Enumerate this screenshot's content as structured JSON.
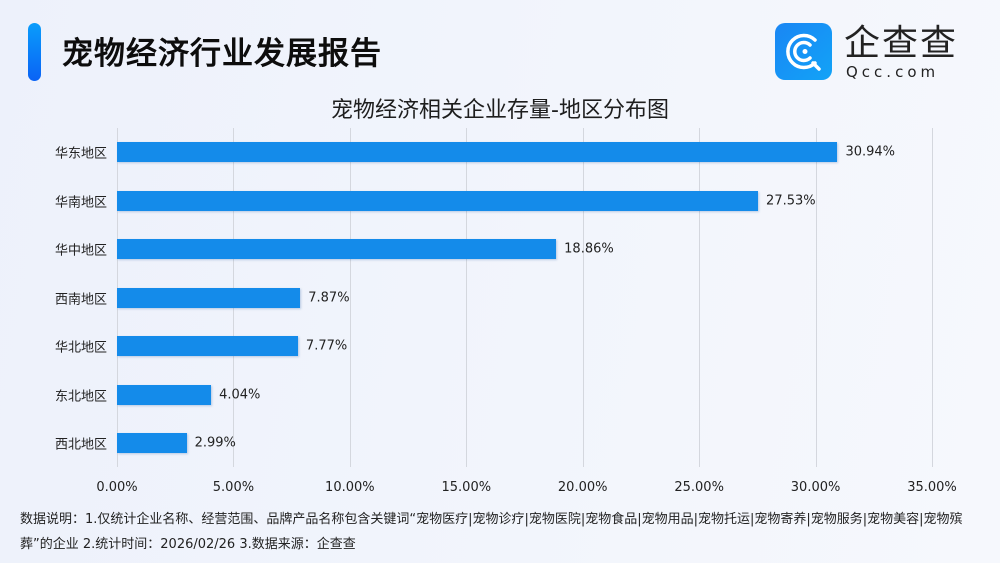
{
  "header": {
    "title": "宠物经济行业发展报告",
    "accent_color": "#0a7cf8"
  },
  "logo": {
    "name_cn": "企查查",
    "name_en": "Qcc.com",
    "icon": "qcc-logo-icon",
    "brand_color": "#1a8ff5"
  },
  "chart_data": {
    "type": "bar",
    "orientation": "horizontal",
    "title": "宠物经济相关企业存量-地区分布图",
    "xlabel": "",
    "ylabel": "",
    "categories": [
      "华东地区",
      "华南地区",
      "华中地区",
      "西南地区",
      "华北地区",
      "东北地区",
      "西北地区"
    ],
    "values": [
      30.94,
      27.53,
      18.86,
      7.87,
      7.77,
      4.04,
      2.99
    ],
    "value_labels": [
      "30.94%",
      "27.53%",
      "18.86%",
      "7.87%",
      "7.77%",
      "4.04%",
      "2.99%"
    ],
    "unit": "%",
    "xlim": [
      0,
      35
    ],
    "x_ticks": [
      "0.00%",
      "5.00%",
      "10.00%",
      "15.00%",
      "20.00%",
      "25.00%",
      "30.00%",
      "35.00%"
    ],
    "grid": "vertical",
    "legend": "none",
    "bar_color": "#148bea"
  },
  "footnote": {
    "text": "数据说明：1.仅统计企业名称、经营范围、品牌产品名称包含关键词“宠物医疗|宠物诊疗|宠物医院|宠物食品|宠物用品|宠物托运|宠物寄养|宠物服务|宠物美容|宠物殡葬”的企业   2.统计时间：2026/02/26    3.数据来源：企查查"
  }
}
